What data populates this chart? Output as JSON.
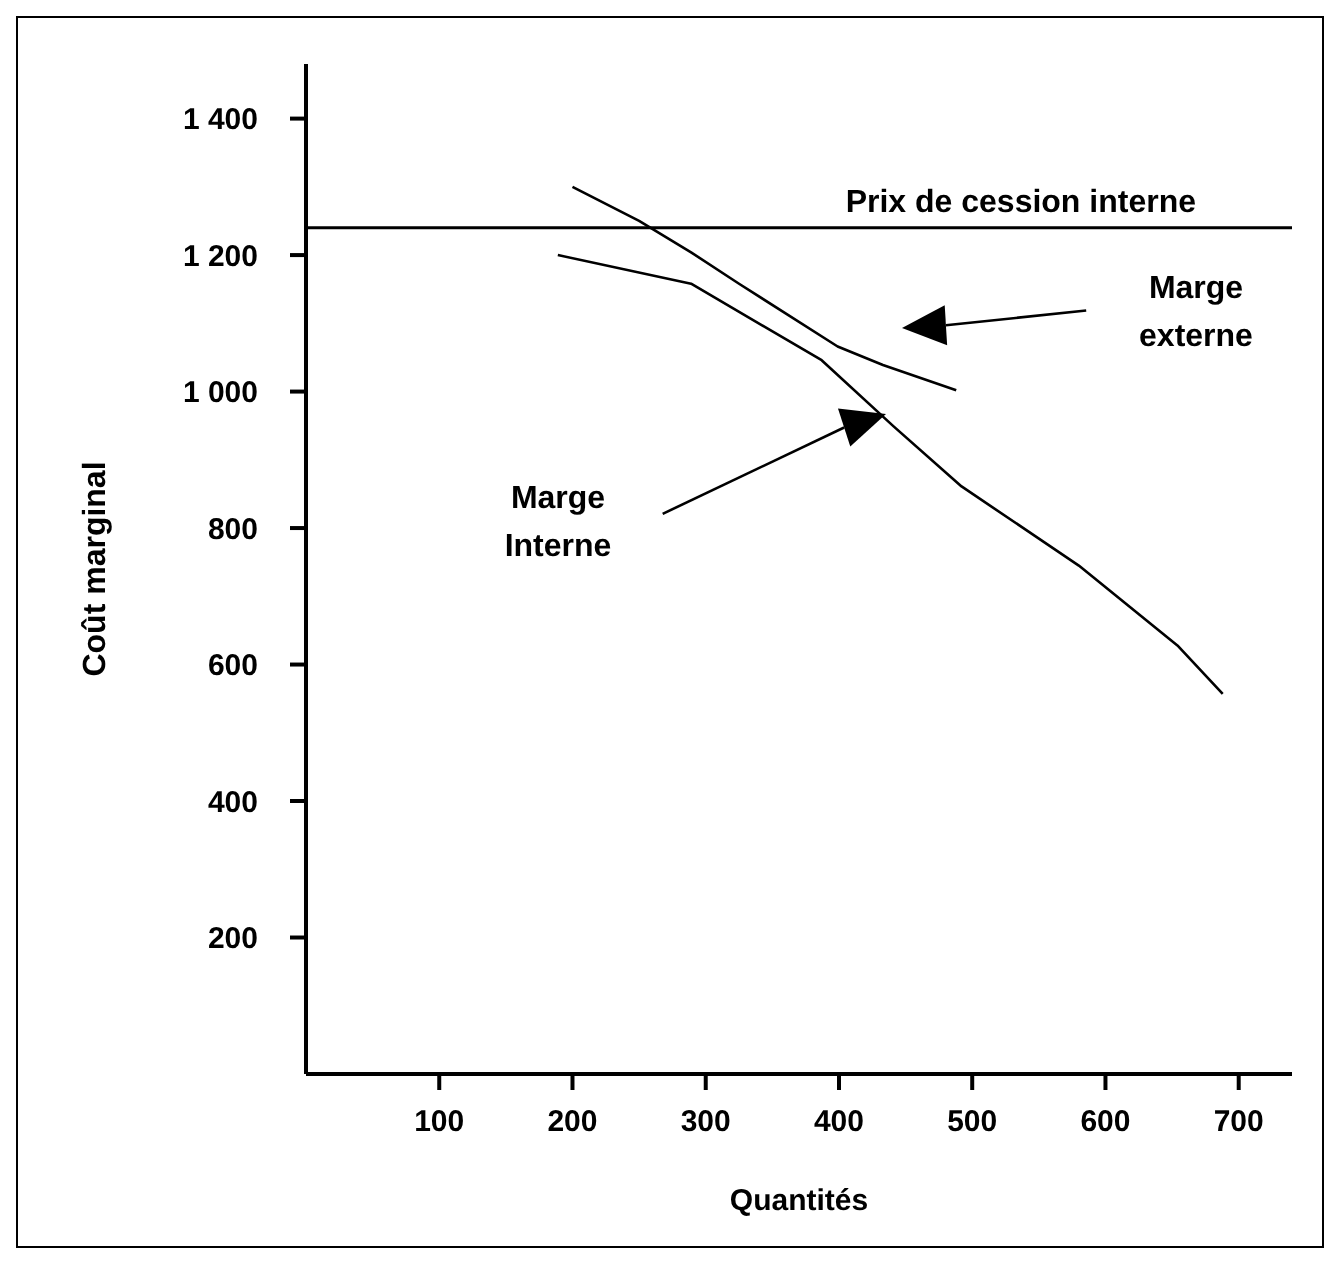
{
  "chart_data": {
    "type": "line",
    "xlabel": "Quantités",
    "ylabel": "Coût marginal",
    "xlim": [
      0,
      740
    ],
    "xticks": [
      100,
      200,
      300,
      400,
      500,
      600,
      700
    ],
    "ylim": [
      0,
      1480
    ],
    "yticks": [
      {
        "value": 200,
        "label": "200"
      },
      {
        "value": 400,
        "label": "400"
      },
      {
        "value": 600,
        "label": "600"
      },
      {
        "value": 800,
        "label": "800"
      },
      {
        "value": 1000,
        "label": "1 000"
      },
      {
        "value": 1200,
        "label": "1 200"
      },
      {
        "value": 1400,
        "label": "1 400"
      }
    ],
    "grid": false,
    "legend": false,
    "marker": "none",
    "line_style": "solid",
    "series": [
      {
        "color": "#000000",
        "x": [
          200,
          250,
          289,
          325,
          399,
          433,
          488
        ],
        "values": [
          1300,
          1250,
          1204,
          1158,
          1066,
          1039,
          1002
        ]
      },
      {
        "color": "#000000",
        "x": [
          189,
          289,
          387,
          441,
          492,
          580,
          654,
          688
        ],
        "values": [
          1200,
          1158,
          1046,
          949,
          861,
          745,
          628,
          557
        ]
      }
    ],
    "ref_lines": [
      {
        "axis": "y",
        "value": 1240,
        "label": "Prix de cession interne",
        "color": "#000000"
      }
    ],
    "annotations": [
      "Marge externe",
      "Marge Interne"
    ]
  }
}
